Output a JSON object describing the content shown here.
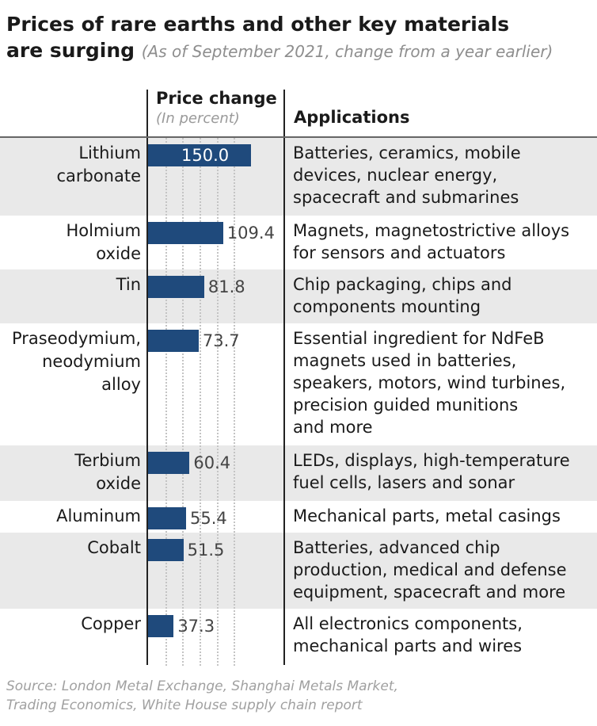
{
  "title": "Prices of rare earths and other key materials are surging",
  "title_line1": "Prices of rare earths and other key materials",
  "title_line2": "are surging",
  "subtitle": "(As of September 2021, change from a year earlier)",
  "columns": {
    "price_change": "Price change",
    "unit": "(In percent)",
    "applications": "Applications"
  },
  "source_line1": "Source: London Metal Exchange, Shanghai Metals Market,",
  "source_line2": "Trading Economics, White House supply chain report",
  "colors": {
    "bar": "#1f4a7c",
    "shade": "#e9e9e9"
  },
  "chart_data": {
    "type": "bar",
    "orientation": "horizontal",
    "title": "Prices of rare earths and other key materials are surging",
    "subtitle": "(As of September 2021, change from a year earlier)",
    "xlabel": "Price change (In percent)",
    "ylabel": "",
    "xlim": [
      0,
      150
    ],
    "grid": true,
    "categories": [
      "Lithium carbonate",
      "Holmium oxide",
      "Tin",
      "Praseodymium, neodymium alloy",
      "Terbium oxide",
      "Aluminum",
      "Cobalt",
      "Copper"
    ],
    "values": [
      150.0,
      109.4,
      81.8,
      73.7,
      60.4,
      55.4,
      51.5,
      37.3
    ],
    "value_labels": [
      "150.0",
      "109.4",
      "81.8",
      "73.7",
      "60.4",
      "55.4",
      "51.5",
      "37.3"
    ]
  },
  "rows": [
    {
      "label_lines": [
        "Lithium",
        "carbonate"
      ],
      "app_lines": [
        "Batteries, ceramics, mobile",
        "devices, nuclear energy,",
        "spacecraft and submarines"
      ]
    },
    {
      "label_lines": [
        "Holmium",
        "oxide"
      ],
      "app_lines": [
        "Magnets, magnetostrictive alloys",
        "for sensors and actuators"
      ]
    },
    {
      "label_lines": [
        "Tin"
      ],
      "app_lines": [
        "Chip packaging, chips and",
        "components mounting"
      ]
    },
    {
      "label_lines": [
        "Praseodymium,",
        "neodymium",
        "alloy"
      ],
      "app_lines": [
        "Essential ingredient for NdFeB",
        "magnets used in batteries,",
        "speakers, motors, wind turbines,",
        "precision guided munitions",
        "and more"
      ]
    },
    {
      "label_lines": [
        "Terbium",
        "oxide"
      ],
      "app_lines": [
        "LEDs, displays, high-temperature",
        "fuel cells, lasers and sonar"
      ]
    },
    {
      "label_lines": [
        "Aluminum"
      ],
      "app_lines": [
        "Mechanical parts, metal casings"
      ]
    },
    {
      "label_lines": [
        "Cobalt"
      ],
      "app_lines": [
        "Batteries, advanced chip",
        "production, medical and defense",
        "equipment, spacecraft and more"
      ]
    },
    {
      "label_lines": [
        "Copper"
      ],
      "app_lines": [
        "All electronics components,",
        "mechanical parts and wires"
      ]
    }
  ]
}
